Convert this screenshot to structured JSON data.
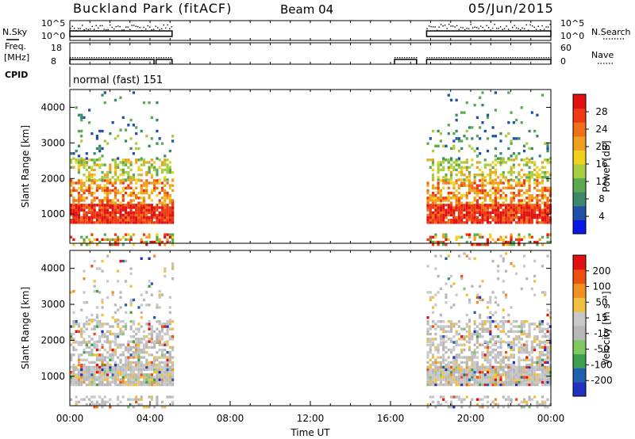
{
  "header": {
    "station": "Buckland Park (fitACF)",
    "beam": "Beam 04",
    "date": "05/Jun/2015"
  },
  "labels": {
    "nsky": "N.Sky",
    "nsearch": "N.Search",
    "freq_line1": "Freq.",
    "freq_line2": "[MHz]",
    "nave": "Nave",
    "cpid": "CPID",
    "mode": "normal (fast) 151"
  },
  "noise_axis": {
    "left_ticks": [
      "10^5",
      "10^0"
    ],
    "right_ticks": [
      "10^5",
      "10^0"
    ]
  },
  "freq_axis": {
    "left_ticks": [
      "18",
      "8"
    ],
    "right_ticks": [
      "60",
      "0"
    ]
  },
  "colors": {
    "power_scale": [
      "#0a16e6",
      "#2050a8",
      "#3a8a6a",
      "#5aaa50",
      "#aacc40",
      "#f0d020",
      "#f0a020",
      "#ef7018",
      "#ee3a14",
      "#e21010"
    ],
    "velocity_scale": [
      "#2030c0",
      "#2060b0",
      "#3aa050",
      "#80c860",
      "#b8b8b8",
      "#c8c8c8",
      "#f0c040",
      "#f09020",
      "#ee5010",
      "#e21010"
    ]
  },
  "chart_data": [
    {
      "type": "heatmap",
      "title": "",
      "xlabel": "Time UT",
      "ylabel": "Slant Range [km]",
      "colorbar_label": "Power [dB]",
      "x_ticks": [
        "00:00",
        "04:00",
        "08:00",
        "12:00",
        "16:00",
        "20:00",
        "00:00"
      ],
      "y_ticks": [
        4000,
        3000,
        2000,
        1000
      ],
      "ylim": [
        180,
        4500
      ],
      "colorbar_ticks": [
        28,
        24,
        20,
        16,
        12,
        8,
        4
      ],
      "colorbar_range": [
        0,
        30
      ],
      "data_intervals_ut": [
        [
          0.0,
          5.1
        ],
        [
          17.8,
          24.0
        ]
      ]
    },
    {
      "type": "heatmap",
      "title": "",
      "xlabel": "Time UT",
      "ylabel": "Slant Range [km]",
      "colorbar_label": "Velocity [m s⁻¹]",
      "x_ticks": [
        "00:00",
        "04:00",
        "08:00",
        "12:00",
        "16:00",
        "20:00",
        "00:00"
      ],
      "y_ticks": [
        4000,
        3000,
        2000,
        1000
      ],
      "ylim": [
        180,
        4500
      ],
      "colorbar_ticks": [
        200,
        100,
        50,
        15,
        -15,
        -50,
        -100,
        -200
      ],
      "data_intervals_ut": [
        [
          0.0,
          5.1
        ],
        [
          17.8,
          24.0
        ]
      ]
    }
  ]
}
